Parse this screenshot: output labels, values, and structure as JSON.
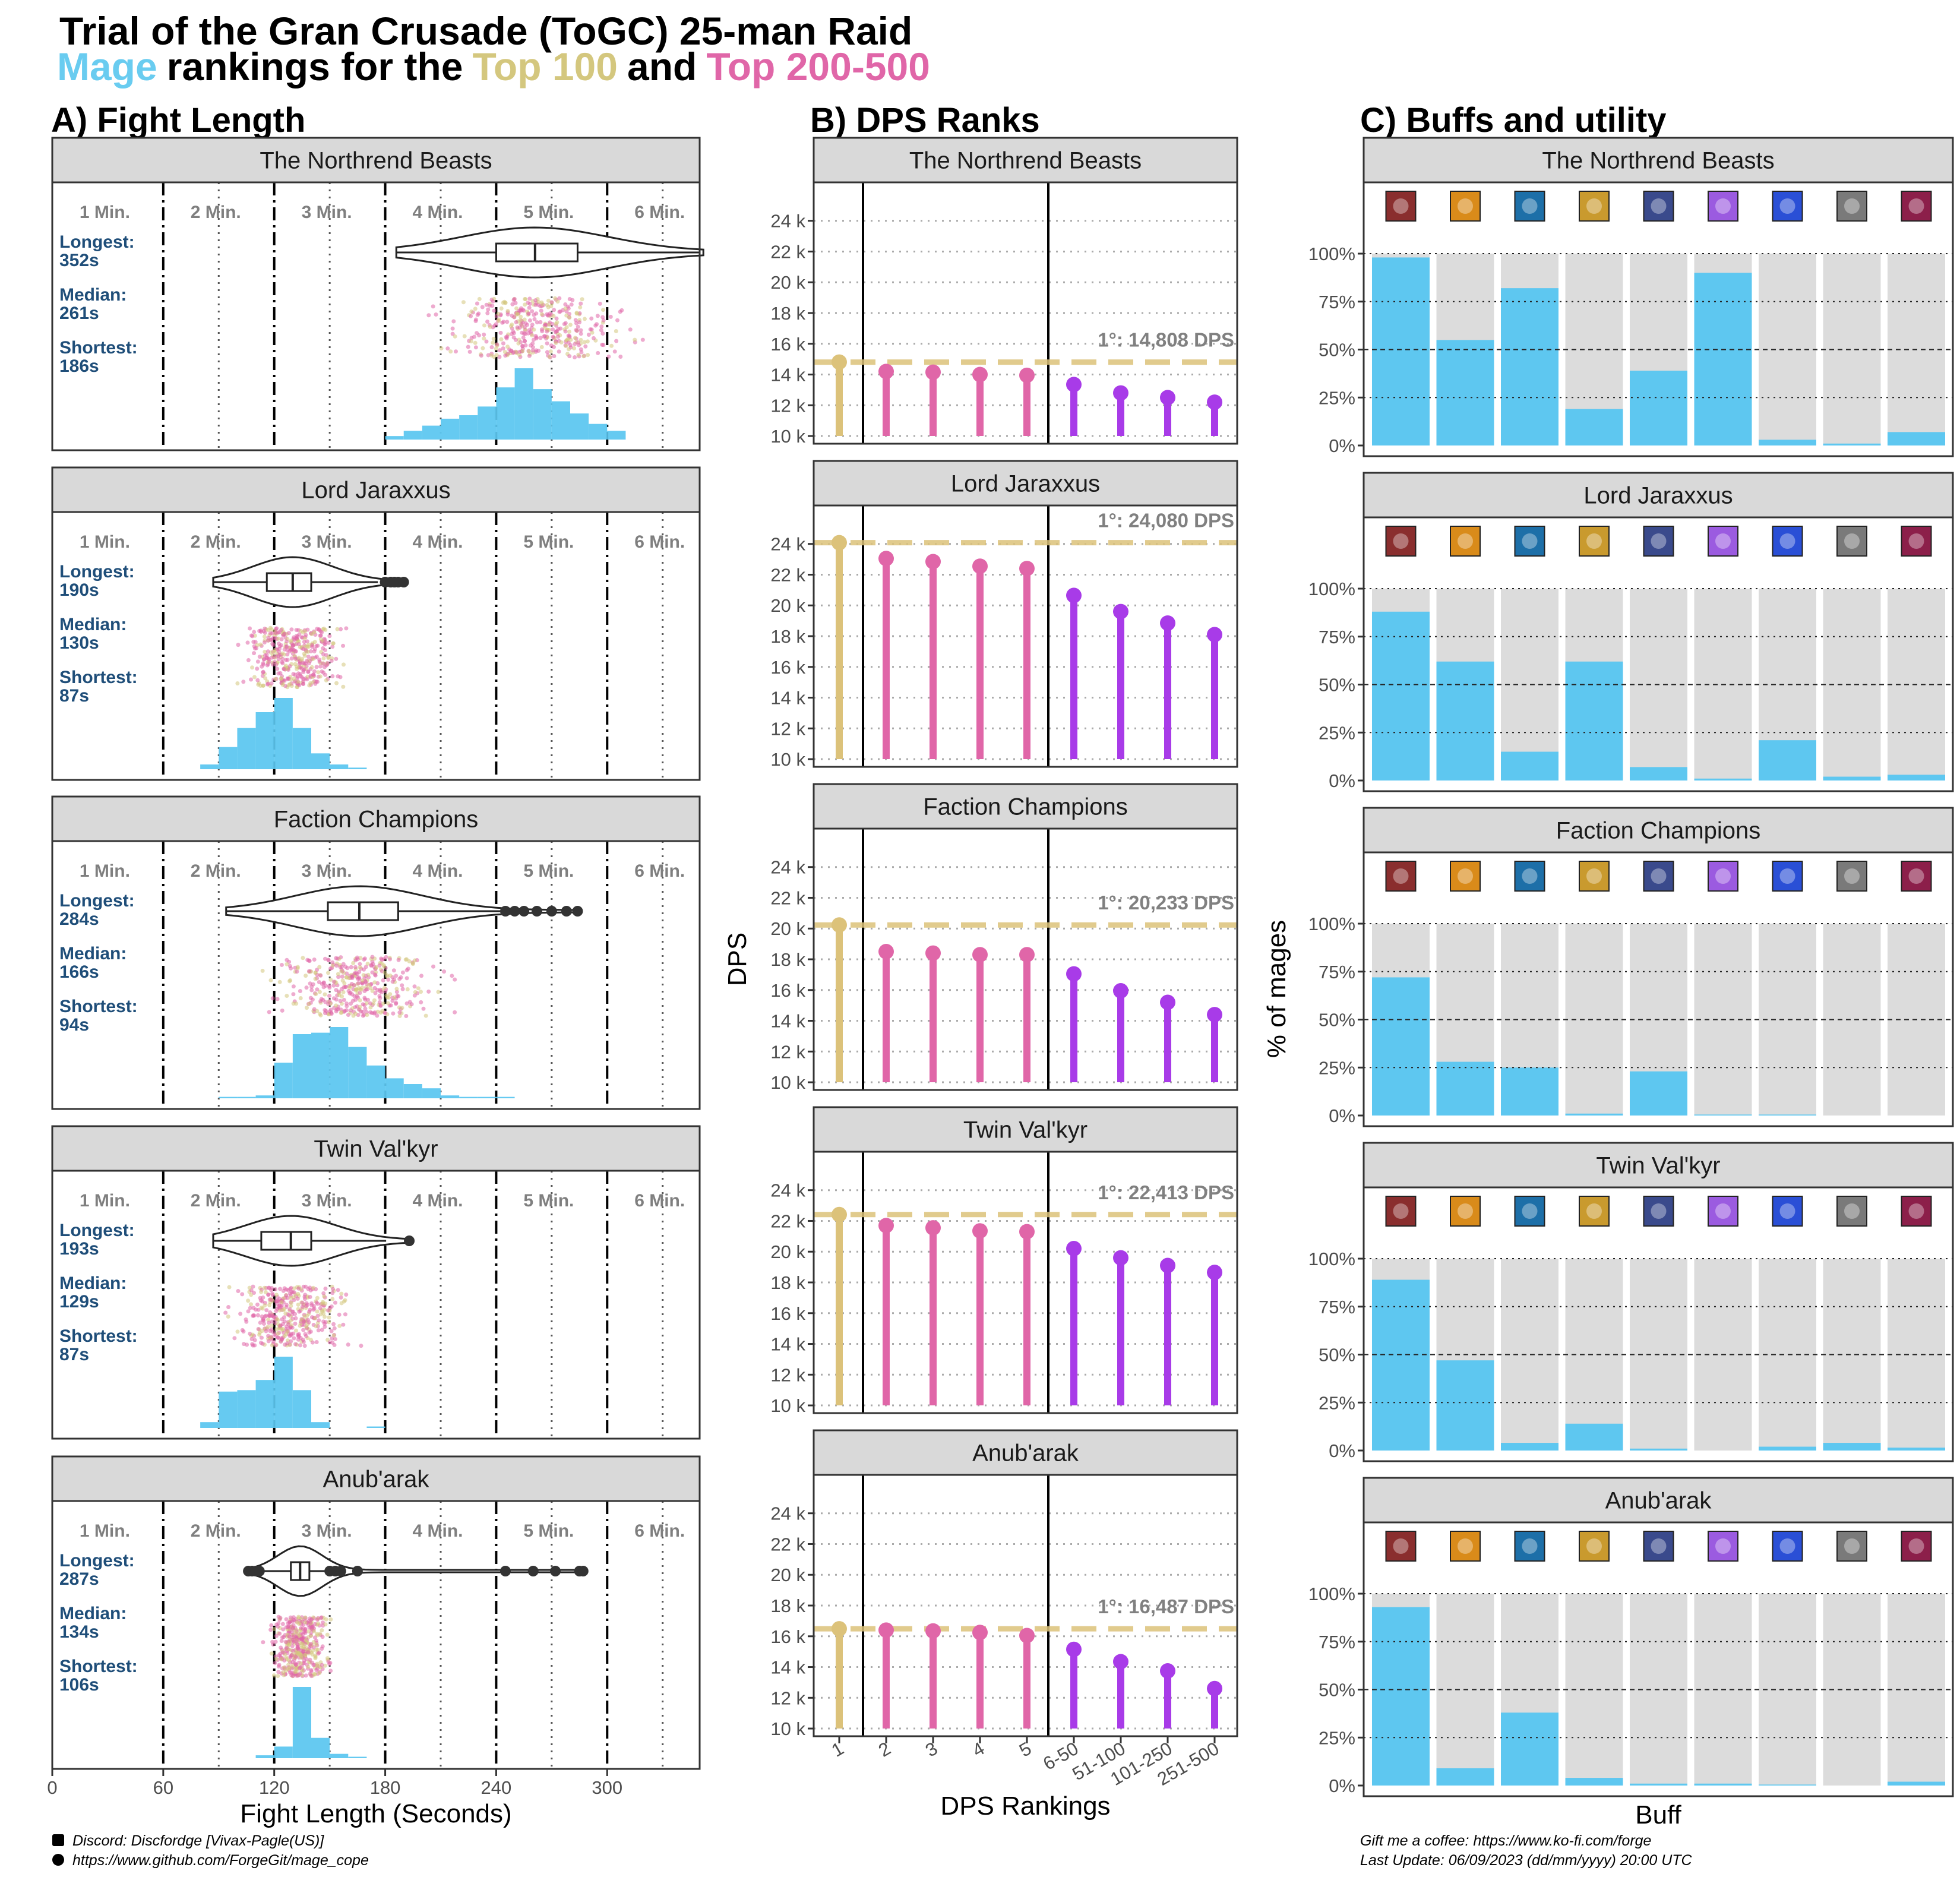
{
  "title": "Trial of the Gran Crusade (ToGC) 25-man Raid",
  "subtitle": {
    "class_word": "Mage",
    "middle": "rankings for the",
    "top100": "Top 100",
    "and": "and",
    "top200": "Top 200-500"
  },
  "colors": {
    "mage": "#69ccf0",
    "top100": "#d4c77e",
    "top200": "#e066a8",
    "rank_top": "#dcc27a",
    "rank_mid": "#e066a8",
    "rank_low": "#a83be8",
    "bar_bg": "#dcdcdc",
    "hist": "#5ec7f0",
    "stat_text": "#1f4e79"
  },
  "sections": {
    "a": "A) Fight Length",
    "b": "B) DPS Ranks",
    "c": "C) Buffs and utility"
  },
  "minute_labels": [
    "1 Min.",
    "2 Min.",
    "3 Min.",
    "4 Min.",
    "5 Min.",
    "6 Min."
  ],
  "stat_labels": {
    "longest": "Longest:",
    "median": "Median:",
    "shortest": "Shortest:"
  },
  "fight_axis": {
    "title": "Fight Length (Seconds)",
    "ticks": [
      "0",
      "60",
      "120",
      "180",
      "240",
      "300"
    ]
  },
  "dps_axis": {
    "title": "DPS",
    "xlabel": "DPS Rankings",
    "yticks": [
      "24 k",
      "22 k",
      "20 k",
      "18 k",
      "16 k",
      "14 k",
      "12 k",
      "10 k"
    ],
    "categories": [
      "1",
      "2",
      "3",
      "4",
      "5",
      "6-50",
      "51-100",
      "101-250",
      "251-500"
    ]
  },
  "buff_axis": {
    "ylabel": "% of mages",
    "xlabel": "Buff",
    "yticks": [
      "100%",
      "75%",
      "50%",
      "25%",
      "0%"
    ],
    "icons": [
      "warrior-buff-icon",
      "fire-face-buff-icon",
      "blue-orb-buff-icon",
      "golden-sigil-buff-icon",
      "shield-emblem-buff-icon",
      "arcane-buff-icon",
      "lightning-buff-icon",
      "drum-buff-icon",
      "claw-buff-icon"
    ]
  },
  "footer": {
    "discord": "Discord: Discfordge [Vivax-Pagle(US)]",
    "github": "https://www.github.com/ForgeGit/mage_cope",
    "coffee": "Gift me a coffee: https://www.ko-fi.com/forge",
    "update": "Last Update: 06/09/2023 (dd/mm/yyyy)  20:00 UTC"
  },
  "chart_data": [
    {
      "type": "violin-histogram",
      "panel": "A) Fight Length",
      "xlabel": "Fight Length (Seconds)",
      "xlim": [
        0,
        350
      ],
      "bosses": [
        {
          "name": "The Northrend Beasts",
          "longest": "352s",
          "median": "261s",
          "shortest": "186s",
          "longest_s": 352,
          "median_s": 261,
          "shortest_s": 186,
          "q1_s": 240,
          "q3_s": 284,
          "hist_bins_start": 180,
          "hist_counts": [
            2,
            5,
            8,
            12,
            14,
            19,
            30,
            41,
            29,
            22,
            15,
            9,
            5
          ]
        },
        {
          "name": "Lord Jaraxxus",
          "longest": "190s",
          "median": "130s",
          "shortest": "87s",
          "longest_s": 190,
          "median_s": 130,
          "shortest_s": 87,
          "q1_s": 116,
          "q3_s": 140,
          "outliers_s": [
            180,
            183,
            185,
            187,
            190
          ],
          "hist_bins_start": 80,
          "hist_counts": [
            3,
            14,
            26,
            36,
            45,
            26,
            10,
            3,
            1
          ]
        },
        {
          "name": "Faction Champions",
          "longest": "284s",
          "median": "166s",
          "shortest": "94s",
          "longest_s": 284,
          "median_s": 166,
          "shortest_s": 94,
          "q1_s": 149,
          "q3_s": 187,
          "outliers_s": [
            245,
            250,
            255,
            262,
            270,
            278,
            284
          ],
          "hist_bins_start": 90,
          "hist_counts": [
            1,
            1,
            2,
            25,
            45,
            46,
            50,
            36,
            23,
            14,
            10,
            7,
            2,
            1,
            1,
            1
          ]
        },
        {
          "name": "Twin Val'kyr",
          "longest": "193s",
          "median": "129s",
          "shortest": "87s",
          "longest_s": 193,
          "median_s": 129,
          "shortest_s": 87,
          "q1_s": 113,
          "q3_s": 140,
          "outliers_s": [
            193
          ],
          "hist_bins_start": 80,
          "hist_counts": [
            4,
            25,
            26,
            33,
            49,
            26,
            4,
            0,
            0,
            1
          ]
        },
        {
          "name": "Anub'arak",
          "longest": "287s",
          "median": "134s",
          "shortest": "106s",
          "longest_s": 287,
          "median_s": 134,
          "shortest_s": 106,
          "q1_s": 129,
          "q3_s": 139,
          "outliers_s": [
            106,
            108,
            110,
            112,
            150,
            153,
            156,
            165,
            245,
            260,
            272,
            285,
            287
          ],
          "hist_bins_start": 100,
          "hist_counts": [
            0,
            2,
            8,
            49,
            14,
            3,
            1
          ]
        }
      ]
    },
    {
      "type": "lollipop",
      "panel": "B) DPS Ranks",
      "ylabel": "DPS",
      "xlabel": "DPS Rankings",
      "ylim": [
        9500,
        26500
      ],
      "categories": [
        "1",
        "2",
        "3",
        "4",
        "5",
        "6-50",
        "51-100",
        "101-250",
        "251-500"
      ],
      "series": [
        {
          "name": "The Northrend Beasts",
          "annotation": "1°: 14,808 DPS",
          "top": 14808,
          "values": [
            14808,
            14200,
            14150,
            14000,
            13950,
            13350,
            12800,
            12500,
            12200
          ]
        },
        {
          "name": "Lord Jaraxxus",
          "annotation": "1°: 24,080 DPS",
          "top": 24080,
          "values": [
            24080,
            23050,
            22850,
            22550,
            22400,
            20650,
            19600,
            18850,
            18100
          ]
        },
        {
          "name": "Faction Champions",
          "annotation": "1°: 20,233 DPS",
          "top": 20233,
          "values": [
            20233,
            18500,
            18400,
            18300,
            18300,
            17050,
            15950,
            15200,
            14400
          ]
        },
        {
          "name": "Twin Val'kyr",
          "annotation": "1°: 22,413 DPS",
          "top": 22413,
          "values": [
            22413,
            21700,
            21550,
            21350,
            21300,
            20200,
            19600,
            19100,
            18650
          ]
        },
        {
          "name": "Anub'arak",
          "annotation": "1°: 16,487 DPS",
          "top": 16487,
          "values": [
            16487,
            16400,
            16350,
            16250,
            16050,
            15150,
            14350,
            13750,
            12600
          ]
        }
      ]
    },
    {
      "type": "bar",
      "panel": "C) Buffs and utility",
      "ylabel": "% of mages",
      "xlabel": "Buff",
      "ylim": [
        0,
        100
      ],
      "series": [
        {
          "name": "The Northrend Beasts",
          "values": [
            98,
            55,
            82,
            19,
            39,
            90,
            3,
            1,
            7
          ]
        },
        {
          "name": "Lord Jaraxxus",
          "values": [
            88,
            62,
            15,
            62,
            7,
            1,
            21,
            2,
            3
          ]
        },
        {
          "name": "Faction Champions",
          "values": [
            72,
            28,
            25,
            1,
            23,
            0.5,
            0.5,
            0,
            0
          ]
        },
        {
          "name": "Twin Val'kyr",
          "values": [
            89,
            47,
            4,
            14,
            1,
            0,
            2,
            4,
            1.5
          ]
        },
        {
          "name": "Anub'arak",
          "values": [
            93,
            9,
            38,
            4,
            1,
            1,
            0.5,
            0,
            2
          ]
        }
      ]
    }
  ]
}
